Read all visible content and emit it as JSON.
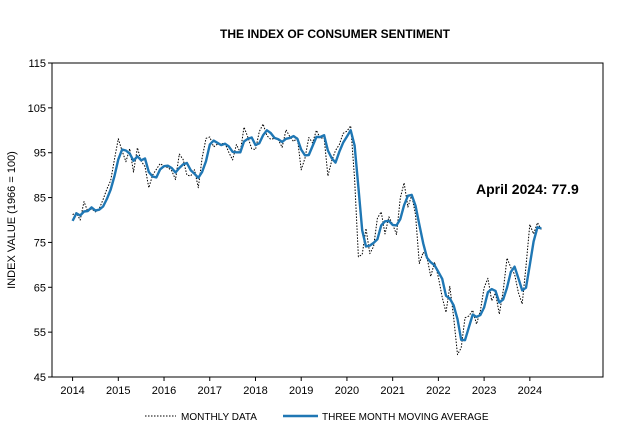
{
  "chart_data": {
    "type": "line",
    "title": "THE INDEX OF CONSUMER SENTIMENT",
    "ylabel": "INDEX VALUE (1966 = 100)",
    "xlabel": "",
    "xlim": [
      2013.55,
      2025.6
    ],
    "ylim": [
      45,
      115
    ],
    "yticks": [
      45,
      55,
      65,
      75,
      85,
      95,
      105,
      115
    ],
    "xticks": [
      2014,
      2015,
      2016,
      2017,
      2018,
      2019,
      2020,
      2021,
      2022,
      2023,
      2024
    ],
    "grid": false,
    "legend_position": "bottom",
    "annotation": {
      "text": "April 2024: 77.9",
      "x": 2024.25,
      "y": 77.9
    },
    "colors": {
      "monthly": "#000000",
      "moving_average": "#1f77b4"
    },
    "series": [
      {
        "name": "MONTHLY DATA",
        "style": "dotted",
        "x": [
          2014.0,
          2014.083,
          2014.167,
          2014.25,
          2014.333,
          2014.417,
          2014.5,
          2014.583,
          2014.667,
          2014.75,
          2014.833,
          2014.917,
          2015.0,
          2015.083,
          2015.167,
          2015.25,
          2015.333,
          2015.417,
          2015.5,
          2015.583,
          2015.667,
          2015.75,
          2015.833,
          2015.917,
          2016.0,
          2016.083,
          2016.167,
          2016.25,
          2016.333,
          2016.417,
          2016.5,
          2016.583,
          2016.667,
          2016.75,
          2016.833,
          2016.917,
          2017.0,
          2017.083,
          2017.167,
          2017.25,
          2017.333,
          2017.417,
          2017.5,
          2017.583,
          2017.667,
          2017.75,
          2017.833,
          2017.917,
          2018.0,
          2018.083,
          2018.167,
          2018.25,
          2018.333,
          2018.417,
          2018.5,
          2018.583,
          2018.667,
          2018.75,
          2018.833,
          2018.917,
          2019.0,
          2019.083,
          2019.167,
          2019.25,
          2019.333,
          2019.417,
          2019.5,
          2019.583,
          2019.667,
          2019.75,
          2019.833,
          2019.917,
          2020.0,
          2020.083,
          2020.167,
          2020.25,
          2020.333,
          2020.417,
          2020.5,
          2020.583,
          2020.667,
          2020.75,
          2020.833,
          2020.917,
          2021.0,
          2021.083,
          2021.167,
          2021.25,
          2021.333,
          2021.417,
          2021.5,
          2021.583,
          2021.667,
          2021.75,
          2021.833,
          2021.917,
          2022.0,
          2022.083,
          2022.167,
          2022.25,
          2022.333,
          2022.417,
          2022.5,
          2022.583,
          2022.667,
          2022.75,
          2022.833,
          2022.917,
          2023.0,
          2023.083,
          2023.167,
          2023.25,
          2023.333,
          2023.417,
          2023.5,
          2023.583,
          2023.667,
          2023.75,
          2023.833,
          2023.917,
          2024.0,
          2024.083,
          2024.167,
          2024.25
        ],
        "values": [
          81.2,
          81.6,
          80.0,
          84.1,
          81.9,
          82.5,
          81.8,
          82.5,
          84.6,
          86.9,
          88.8,
          93.6,
          98.1,
          95.4,
          93.0,
          95.9,
          90.7,
          96.1,
          93.1,
          91.9,
          87.2,
          90.0,
          91.3,
          92.6,
          92.0,
          91.7,
          91.0,
          89.0,
          94.7,
          93.5,
          90.0,
          89.8,
          91.2,
          87.2,
          93.8,
          98.2,
          98.5,
          96.3,
          96.9,
          97.0,
          97.1,
          95.1,
          93.4,
          96.8,
          95.1,
          100.7,
          98.5,
          95.9,
          95.7,
          99.7,
          101.4,
          98.8,
          98.0,
          98.2,
          97.9,
          96.2,
          100.1,
          98.6,
          97.5,
          98.3,
          91.2,
          93.8,
          98.4,
          97.2,
          100.0,
          98.2,
          98.4,
          89.8,
          93.2,
          95.5,
          96.8,
          99.3,
          99.8,
          101.0,
          89.1,
          71.8,
          72.3,
          78.1,
          72.5,
          74.1,
          80.4,
          81.8,
          76.9,
          80.7,
          79.0,
          76.8,
          84.9,
          88.3,
          82.9,
          85.5,
          81.2,
          70.3,
          72.8,
          71.7,
          67.4,
          70.6,
          67.2,
          62.8,
          59.4,
          65.2,
          58.4,
          50.0,
          51.5,
          58.2,
          58.6,
          59.9,
          56.8,
          59.7,
          64.9,
          67.0,
          62.0,
          63.7,
          59.0,
          64.2,
          71.5,
          69.4,
          67.9,
          63.8,
          61.3,
          69.7,
          79.0,
          76.9,
          79.4,
          77.9
        ]
      },
      {
        "name": "THREE MONTH MOVING AVERAGE",
        "style": "solid",
        "x": [
          2014.0,
          2014.083,
          2014.167,
          2014.25,
          2014.333,
          2014.417,
          2014.5,
          2014.583,
          2014.667,
          2014.75,
          2014.833,
          2014.917,
          2015.0,
          2015.083,
          2015.167,
          2015.25,
          2015.333,
          2015.417,
          2015.5,
          2015.583,
          2015.667,
          2015.75,
          2015.833,
          2015.917,
          2016.0,
          2016.083,
          2016.167,
          2016.25,
          2016.333,
          2016.417,
          2016.5,
          2016.583,
          2016.667,
          2016.75,
          2016.833,
          2016.917,
          2017.0,
          2017.083,
          2017.167,
          2017.25,
          2017.333,
          2017.417,
          2017.5,
          2017.583,
          2017.667,
          2017.75,
          2017.833,
          2017.917,
          2018.0,
          2018.083,
          2018.167,
          2018.25,
          2018.333,
          2018.417,
          2018.5,
          2018.583,
          2018.667,
          2018.75,
          2018.833,
          2018.917,
          2019.0,
          2019.083,
          2019.167,
          2019.25,
          2019.333,
          2019.417,
          2019.5,
          2019.583,
          2019.667,
          2019.75,
          2019.833,
          2019.917,
          2020.0,
          2020.083,
          2020.167,
          2020.25,
          2020.333,
          2020.417,
          2020.5,
          2020.583,
          2020.667,
          2020.75,
          2020.833,
          2020.917,
          2021.0,
          2021.083,
          2021.167,
          2021.25,
          2021.333,
          2021.417,
          2021.5,
          2021.583,
          2021.667,
          2021.75,
          2021.833,
          2021.917,
          2022.0,
          2022.083,
          2022.167,
          2022.25,
          2022.333,
          2022.417,
          2022.5,
          2022.583,
          2022.667,
          2022.75,
          2022.833,
          2022.917,
          2023.0,
          2023.083,
          2023.167,
          2023.25,
          2023.333,
          2023.417,
          2023.5,
          2023.583,
          2023.667,
          2023.75,
          2023.833,
          2023.917,
          2024.0,
          2024.083,
          2024.167,
          2024.25
        ],
        "values": [
          79.8,
          81.5,
          81.0,
          81.9,
          82.0,
          82.8,
          82.1,
          82.3,
          83.0,
          84.7,
          86.8,
          89.8,
          93.5,
          95.7,
          95.5,
          94.8,
          93.2,
          94.2,
          93.3,
          93.7,
          90.7,
          89.7,
          89.5,
          91.3,
          92.0,
          92.1,
          91.6,
          90.6,
          91.6,
          92.4,
          92.7,
          91.1,
          90.3,
          89.4,
          90.7,
          93.1,
          96.8,
          97.7,
          97.2,
          96.7,
          97.0,
          96.4,
          95.2,
          95.1,
          95.1,
          97.5,
          98.1,
          98.4,
          96.7,
          97.1,
          98.9,
          100.0,
          99.4,
          98.3,
          98.0,
          97.4,
          98.1,
          98.3,
          98.7,
          98.1,
          95.7,
          94.4,
          94.5,
          96.5,
          98.5,
          98.5,
          98.9,
          95.5,
          93.8,
          92.8,
          95.2,
          97.2,
          98.6,
          100.0,
          96.6,
          87.3,
          77.7,
          74.1,
          74.3,
          74.9,
          75.7,
          78.8,
          79.7,
          79.8,
          78.9,
          78.8,
          80.2,
          83.3,
          85.4,
          85.6,
          83.2,
          79.0,
          74.8,
          71.6,
          70.6,
          69.9,
          68.4,
          66.9,
          63.1,
          62.5,
          61.0,
          57.9,
          53.3,
          53.2,
          56.1,
          58.9,
          58.4,
          58.8,
          60.5,
          63.9,
          64.6,
          64.2,
          61.6,
          62.3,
          64.9,
          68.4,
          69.6,
          67.0,
          64.3,
          64.9,
          70.0,
          75.2,
          78.4,
          78.1
        ]
      }
    ]
  },
  "legend": {
    "items": [
      {
        "label": "MONTHLY DATA"
      },
      {
        "label": "THREE MONTH MOVING AVERAGE"
      }
    ]
  }
}
